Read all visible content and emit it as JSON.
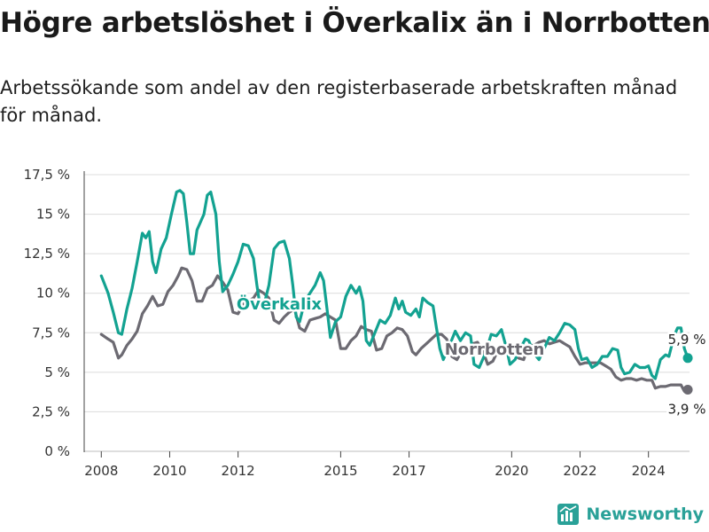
{
  "header": {
    "title": "Högre arbetslöshet i Överkalix än i Norrbotten",
    "subtitle": "Arbetssökande som andel av den registerbaserade arbetskraften månad för månad."
  },
  "branding": {
    "name": "Newsworthy",
    "icon": "bar-chart-logo-icon"
  },
  "colors": {
    "overkalix": "#13a291",
    "norrbotten": "#6c6a72",
    "grid": "#dcdcdc",
    "axis": "#333333"
  },
  "chart_data": {
    "type": "line",
    "title": "Högre arbetslöshet i Överkalix än i Norrbotten",
    "subtitle": "Arbetssökande som andel av den registerbaserade arbetskraften månad för månad.",
    "xlabel": "",
    "ylabel": "",
    "x_unit": "year",
    "xlim": [
      2007.5,
      2025.2
    ],
    "ylim": [
      0,
      17.5
    ],
    "x_ticks": [
      2008,
      2010,
      2012,
      2015,
      2017,
      2020,
      2022,
      2024
    ],
    "x_tick_labels": [
      "2008",
      "2010",
      "2012",
      "2015",
      "2017",
      "2020",
      "2022",
      "2024"
    ],
    "y_ticks": [
      0,
      2.5,
      5,
      7.5,
      10,
      12.5,
      15,
      17.5
    ],
    "y_tick_labels": [
      "0 %",
      "2,5 %",
      "5 %",
      "7,5 %",
      "10 %",
      "12,5 %",
      "15 %",
      "17,5 %"
    ],
    "grid": true,
    "series": [
      {
        "name": "Överkalix",
        "color": "#13a291",
        "label": "Överkalix",
        "end_label": "5,9 %",
        "points": [
          [
            2008.0,
            11.1
          ],
          [
            2008.2,
            10.0
          ],
          [
            2008.35,
            8.8
          ],
          [
            2008.5,
            7.5
          ],
          [
            2008.6,
            7.4
          ],
          [
            2008.75,
            9.0
          ],
          [
            2008.9,
            10.3
          ],
          [
            2009.05,
            12.0
          ],
          [
            2009.2,
            13.8
          ],
          [
            2009.3,
            13.5
          ],
          [
            2009.4,
            13.9
          ],
          [
            2009.5,
            12.0
          ],
          [
            2009.6,
            11.3
          ],
          [
            2009.75,
            12.8
          ],
          [
            2009.9,
            13.5
          ],
          [
            2010.05,
            15.0
          ],
          [
            2010.2,
            16.4
          ],
          [
            2010.3,
            16.5
          ],
          [
            2010.4,
            16.3
          ],
          [
            2010.5,
            14.5
          ],
          [
            2010.6,
            12.5
          ],
          [
            2010.7,
            12.5
          ],
          [
            2010.8,
            14.0
          ],
          [
            2010.9,
            14.5
          ],
          [
            2011.0,
            15.0
          ],
          [
            2011.1,
            16.2
          ],
          [
            2011.2,
            16.4
          ],
          [
            2011.35,
            15.0
          ],
          [
            2011.45,
            12.0
          ],
          [
            2011.55,
            10.1
          ],
          [
            2011.7,
            10.5
          ],
          [
            2011.85,
            11.2
          ],
          [
            2012.0,
            12.0
          ],
          [
            2012.15,
            13.1
          ],
          [
            2012.3,
            13.0
          ],
          [
            2012.45,
            12.2
          ],
          [
            2012.55,
            10.5
          ],
          [
            2012.65,
            9.1
          ],
          [
            2012.75,
            9.2
          ],
          [
            2012.9,
            10.5
          ],
          [
            2013.05,
            12.8
          ],
          [
            2013.2,
            13.2
          ],
          [
            2013.35,
            13.3
          ],
          [
            2013.5,
            12.2
          ],
          [
            2013.6,
            10.5
          ],
          [
            2013.7,
            8.5
          ],
          [
            2013.8,
            8.2
          ],
          [
            2013.95,
            9.5
          ],
          [
            2014.1,
            10.0
          ],
          [
            2014.25,
            10.5
          ],
          [
            2014.4,
            11.3
          ],
          [
            2014.5,
            10.8
          ],
          [
            2014.6,
            9.0
          ],
          [
            2014.7,
            7.2
          ],
          [
            2014.85,
            8.2
          ],
          [
            2015.0,
            8.5
          ],
          [
            2015.15,
            9.8
          ],
          [
            2015.3,
            10.5
          ],
          [
            2015.45,
            10.0
          ],
          [
            2015.55,
            10.4
          ],
          [
            2015.65,
            9.5
          ],
          [
            2015.75,
            7.0
          ],
          [
            2015.85,
            6.7
          ],
          [
            2016.0,
            7.5
          ],
          [
            2016.15,
            8.3
          ],
          [
            2016.3,
            8.1
          ],
          [
            2016.45,
            8.6
          ],
          [
            2016.6,
            9.7
          ],
          [
            2016.7,
            9.0
          ],
          [
            2016.8,
            9.5
          ],
          [
            2016.9,
            8.8
          ],
          [
            2017.05,
            8.6
          ],
          [
            2017.2,
            9.0
          ],
          [
            2017.3,
            8.5
          ],
          [
            2017.4,
            9.7
          ],
          [
            2017.55,
            9.4
          ],
          [
            2017.7,
            9.2
          ],
          [
            2017.8,
            7.8
          ],
          [
            2017.9,
            6.5
          ],
          [
            2018.0,
            5.8
          ],
          [
            2018.2,
            6.8
          ],
          [
            2018.35,
            7.6
          ],
          [
            2018.5,
            7.0
          ],
          [
            2018.65,
            7.5
          ],
          [
            2018.8,
            7.3
          ],
          [
            2018.9,
            5.5
          ],
          [
            2019.05,
            5.3
          ],
          [
            2019.25,
            6.3
          ],
          [
            2019.4,
            7.4
          ],
          [
            2019.55,
            7.3
          ],
          [
            2019.7,
            7.7
          ],
          [
            2019.85,
            6.5
          ],
          [
            2019.95,
            5.5
          ],
          [
            2020.1,
            5.8
          ],
          [
            2020.25,
            6.5
          ],
          [
            2020.4,
            7.1
          ],
          [
            2020.5,
            7.0
          ],
          [
            2020.65,
            6.2
          ],
          [
            2020.8,
            5.8
          ],
          [
            2020.95,
            6.5
          ],
          [
            2021.1,
            7.2
          ],
          [
            2021.25,
            7.0
          ],
          [
            2021.4,
            7.5
          ],
          [
            2021.55,
            8.1
          ],
          [
            2021.7,
            8.0
          ],
          [
            2021.85,
            7.7
          ],
          [
            2021.95,
            6.5
          ],
          [
            2022.05,
            5.8
          ],
          [
            2022.2,
            5.9
          ],
          [
            2022.35,
            5.3
          ],
          [
            2022.5,
            5.5
          ],
          [
            2022.65,
            6.0
          ],
          [
            2022.8,
            6.0
          ],
          [
            2022.95,
            6.5
          ],
          [
            2023.1,
            6.4
          ],
          [
            2023.2,
            5.3
          ],
          [
            2023.3,
            4.9
          ],
          [
            2023.45,
            5.0
          ],
          [
            2023.6,
            5.5
          ],
          [
            2023.75,
            5.3
          ],
          [
            2023.9,
            5.3
          ],
          [
            2024.0,
            5.4
          ],
          [
            2024.1,
            4.8
          ],
          [
            2024.2,
            4.6
          ],
          [
            2024.35,
            5.8
          ],
          [
            2024.5,
            6.1
          ],
          [
            2024.6,
            6.0
          ],
          [
            2024.75,
            7.3
          ],
          [
            2024.85,
            7.8
          ],
          [
            2024.95,
            7.8
          ],
          [
            2025.05,
            6.5
          ],
          [
            2025.15,
            5.9
          ]
        ]
      },
      {
        "name": "Norrbotten",
        "color": "#6c6a72",
        "label": "Norrbotten",
        "end_label": "3,9 %",
        "points": [
          [
            2008.0,
            7.4
          ],
          [
            2008.2,
            7.1
          ],
          [
            2008.35,
            6.9
          ],
          [
            2008.5,
            5.9
          ],
          [
            2008.6,
            6.1
          ],
          [
            2008.75,
            6.7
          ],
          [
            2008.9,
            7.1
          ],
          [
            2009.05,
            7.6
          ],
          [
            2009.2,
            8.7
          ],
          [
            2009.35,
            9.2
          ],
          [
            2009.5,
            9.8
          ],
          [
            2009.65,
            9.2
          ],
          [
            2009.8,
            9.3
          ],
          [
            2009.95,
            10.1
          ],
          [
            2010.1,
            10.5
          ],
          [
            2010.25,
            11.1
          ],
          [
            2010.35,
            11.6
          ],
          [
            2010.5,
            11.5
          ],
          [
            2010.65,
            10.8
          ],
          [
            2010.8,
            9.5
          ],
          [
            2010.95,
            9.5
          ],
          [
            2011.1,
            10.3
          ],
          [
            2011.25,
            10.5
          ],
          [
            2011.4,
            11.1
          ],
          [
            2011.55,
            10.7
          ],
          [
            2011.7,
            10.2
          ],
          [
            2011.85,
            8.8
          ],
          [
            2012.0,
            8.7
          ],
          [
            2012.15,
            9.3
          ],
          [
            2012.3,
            9.5
          ],
          [
            2012.45,
            9.7
          ],
          [
            2012.6,
            10.2
          ],
          [
            2012.75,
            10.0
          ],
          [
            2012.9,
            9.7
          ],
          [
            2013.05,
            8.3
          ],
          [
            2013.2,
            8.1
          ],
          [
            2013.35,
            8.5
          ],
          [
            2013.5,
            8.8
          ],
          [
            2013.65,
            9.0
          ],
          [
            2013.8,
            7.8
          ],
          [
            2013.95,
            7.6
          ],
          [
            2014.1,
            8.3
          ],
          [
            2014.25,
            8.4
          ],
          [
            2014.4,
            8.5
          ],
          [
            2014.55,
            8.7
          ],
          [
            2014.7,
            8.5
          ],
          [
            2014.85,
            8.3
          ],
          [
            2015.0,
            6.5
          ],
          [
            2015.15,
            6.5
          ],
          [
            2015.3,
            7.0
          ],
          [
            2015.45,
            7.3
          ],
          [
            2015.6,
            7.9
          ],
          [
            2015.75,
            7.7
          ],
          [
            2015.9,
            7.6
          ],
          [
            2016.05,
            6.4
          ],
          [
            2016.2,
            6.5
          ],
          [
            2016.35,
            7.3
          ],
          [
            2016.5,
            7.5
          ],
          [
            2016.65,
            7.8
          ],
          [
            2016.8,
            7.7
          ],
          [
            2016.95,
            7.3
          ],
          [
            2017.1,
            6.3
          ],
          [
            2017.2,
            6.1
          ],
          [
            2017.35,
            6.5
          ],
          [
            2017.5,
            6.8
          ],
          [
            2017.65,
            7.1
          ],
          [
            2017.8,
            7.4
          ],
          [
            2017.95,
            7.4
          ],
          [
            2018.1,
            7.1
          ],
          [
            2018.25,
            6.0
          ],
          [
            2018.4,
            5.8
          ],
          [
            2018.55,
            6.4
          ],
          [
            2018.7,
            6.5
          ],
          [
            2018.85,
            6.8
          ],
          [
            2019.0,
            6.9
          ],
          [
            2019.15,
            6.4
          ],
          [
            2019.3,
            5.5
          ],
          [
            2019.45,
            5.7
          ],
          [
            2019.6,
            6.4
          ],
          [
            2019.75,
            6.5
          ],
          [
            2019.9,
            6.5
          ],
          [
            2020.05,
            6.6
          ],
          [
            2020.2,
            5.9
          ],
          [
            2020.35,
            5.8
          ],
          [
            2020.5,
            6.7
          ],
          [
            2020.65,
            6.7
          ],
          [
            2020.8,
            6.9
          ],
          [
            2020.95,
            7.0
          ],
          [
            2021.1,
            6.8
          ],
          [
            2021.25,
            6.9
          ],
          [
            2021.4,
            7.0
          ],
          [
            2021.55,
            6.8
          ],
          [
            2021.7,
            6.6
          ],
          [
            2021.85,
            6.0
          ],
          [
            2022.0,
            5.5
          ],
          [
            2022.15,
            5.6
          ],
          [
            2022.3,
            5.6
          ],
          [
            2022.45,
            5.6
          ],
          [
            2022.6,
            5.6
          ],
          [
            2022.75,
            5.4
          ],
          [
            2022.9,
            5.2
          ],
          [
            2023.05,
            4.7
          ],
          [
            2023.2,
            4.5
          ],
          [
            2023.35,
            4.6
          ],
          [
            2023.5,
            4.6
          ],
          [
            2023.65,
            4.5
          ],
          [
            2023.8,
            4.6
          ],
          [
            2023.95,
            4.5
          ],
          [
            2024.1,
            4.5
          ],
          [
            2024.2,
            4.0
          ],
          [
            2024.35,
            4.1
          ],
          [
            2024.5,
            4.1
          ],
          [
            2024.65,
            4.2
          ],
          [
            2024.8,
            4.2
          ],
          [
            2024.95,
            4.2
          ],
          [
            2025.05,
            3.8
          ],
          [
            2025.15,
            3.9
          ]
        ]
      }
    ]
  }
}
